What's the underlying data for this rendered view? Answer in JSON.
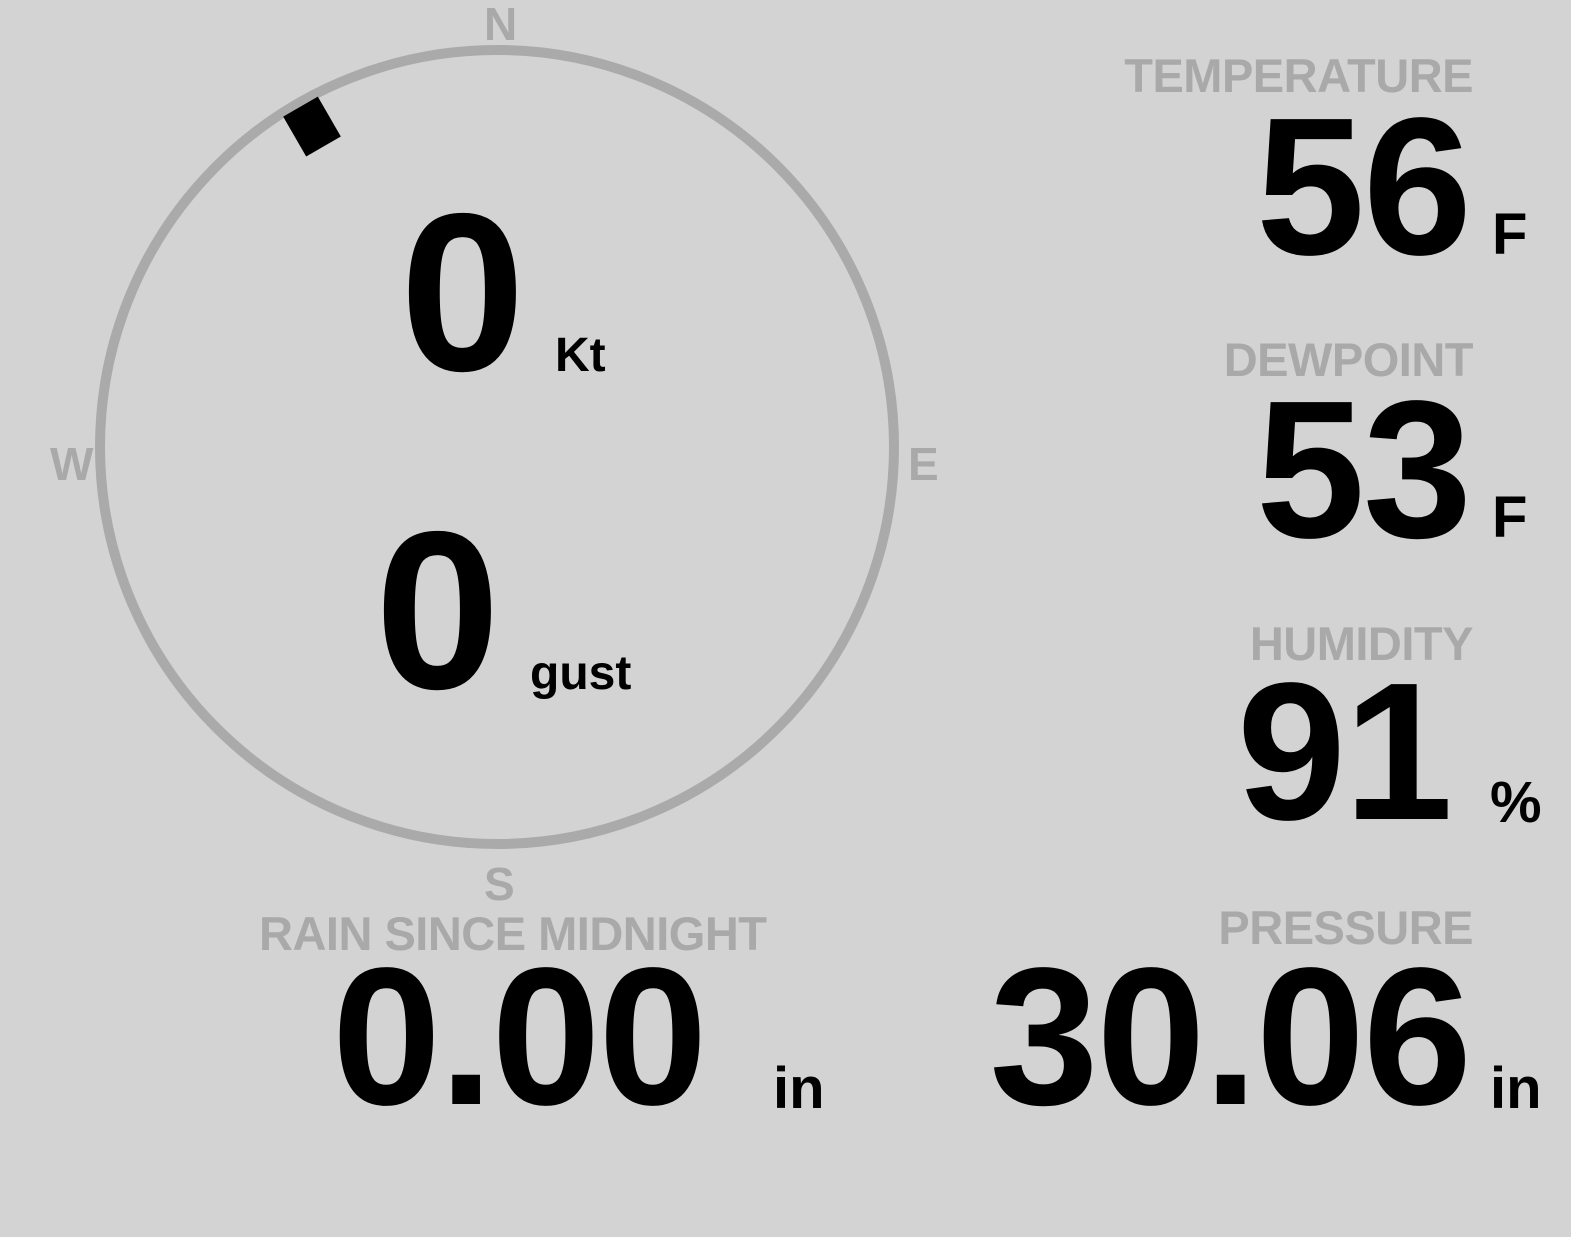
{
  "colors": {
    "background": "#d3d3d3",
    "label": "#a9a9a9",
    "value": "#000000",
    "ring": "#aaaaaa"
  },
  "wind": {
    "cardinals": {
      "n": "N",
      "e": "E",
      "s": "S",
      "w": "W"
    },
    "direction_deg": 330,
    "speed": "0",
    "speed_unit": "Kt",
    "gust": "0",
    "gust_unit": "gust"
  },
  "temperature": {
    "label": "TEMPERATURE",
    "value": "56",
    "unit": "F"
  },
  "dewpoint": {
    "label": "DEWPOINT",
    "value": "53",
    "unit": "F"
  },
  "humidity": {
    "label": "HUMIDITY",
    "value": "91",
    "unit": "%"
  },
  "rain": {
    "label": "RAIN SINCE MIDNIGHT",
    "value": "0.00",
    "unit": "in"
  },
  "pressure": {
    "label": "PRESSURE",
    "value": "30.06",
    "unit": "in"
  }
}
